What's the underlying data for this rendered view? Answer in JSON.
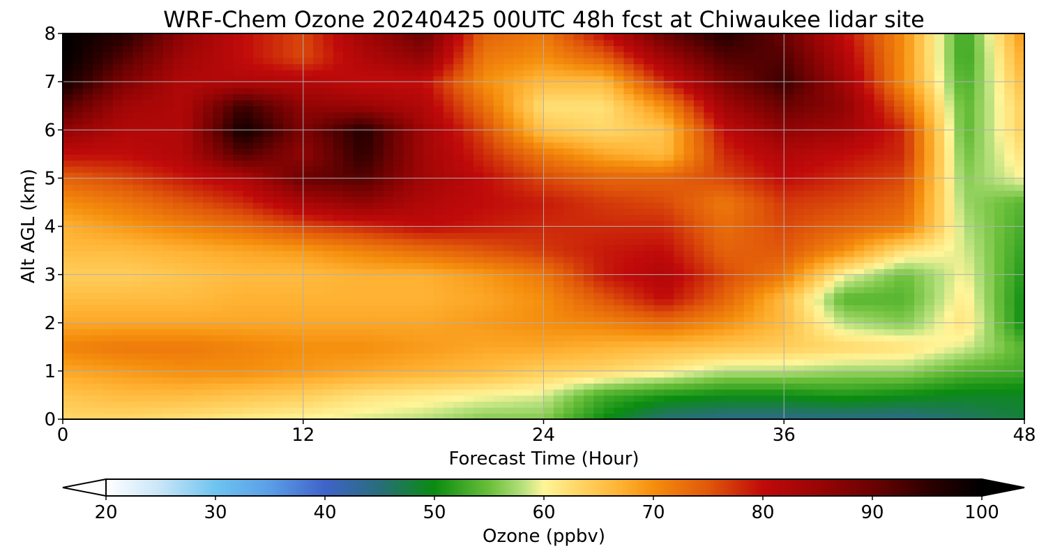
{
  "chart_data": {
    "type": "heatmap",
    "title": "WRF-Chem Ozone  20240425 00UTC 48h fcst at Chiwaukee lidar site",
    "xlabel": "Forecast Time (Hour)",
    "ylabel": "Alt AGL (km)",
    "xlim": [
      0,
      48
    ],
    "ylim": [
      0,
      8
    ],
    "x_ticks": [
      "0",
      "12",
      "24",
      "36",
      "48"
    ],
    "y_ticks": [
      "0",
      "1",
      "2",
      "3",
      "4",
      "5",
      "6",
      "7",
      "8"
    ],
    "grid": true,
    "x": [
      0,
      3,
      6,
      9,
      12,
      15,
      18,
      21,
      24,
      27,
      30,
      33,
      36,
      39,
      42,
      45,
      48
    ],
    "y": [
      0,
      0.5,
      1,
      1.5,
      2,
      2.5,
      3,
      3.5,
      4,
      4.5,
      5,
      5.5,
      6,
      6.5,
      7,
      7.5,
      8
    ],
    "z": [
      [
        63,
        63,
        62,
        61,
        60,
        59,
        58,
        56,
        56,
        50,
        45,
        44,
        44,
        44,
        44,
        46,
        48
      ],
      [
        65,
        66,
        66,
        65,
        64,
        62,
        61,
        60,
        59,
        53,
        51,
        50,
        50,
        51,
        50,
        49,
        49
      ],
      [
        68,
        69,
        70,
        70,
        69,
        68,
        67,
        66,
        64,
        63,
        61,
        58,
        58,
        57,
        57,
        54,
        53
      ],
      [
        71,
        72,
        72,
        71,
        70,
        70,
        69,
        68,
        68,
        67,
        66,
        65,
        64,
        63,
        62,
        59,
        54
      ],
      [
        68,
        68,
        68,
        68,
        68,
        68,
        68,
        69,
        70,
        71,
        73,
        70,
        66,
        58,
        56,
        62,
        50
      ],
      [
        66,
        66,
        66,
        67,
        67,
        67,
        67,
        68,
        70,
        75,
        80,
        74,
        66,
        54,
        54,
        61,
        50
      ],
      [
        64,
        64,
        65,
        66,
        66,
        67,
        67,
        69,
        72,
        79,
        82,
        76,
        72,
        60,
        55,
        60,
        51
      ],
      [
        66,
        66,
        67,
        68,
        69,
        71,
        73,
        75,
        77,
        79,
        80,
        74,
        75,
        70,
        62,
        59,
        52
      ],
      [
        67,
        69,
        71,
        73,
        76,
        78,
        80,
        79,
        78,
        78,
        78,
        73,
        76,
        74,
        72,
        58,
        53
      ],
      [
        70,
        72,
        75,
        78,
        83,
        86,
        82,
        80,
        79,
        77,
        76,
        72,
        77,
        76,
        74,
        57,
        54
      ],
      [
        74,
        76,
        79,
        82,
        90,
        92,
        84,
        80,
        76,
        74,
        74,
        76,
        80,
        78,
        76,
        56,
        60
      ],
      [
        80,
        80,
        82,
        92,
        86,
        95,
        84,
        78,
        72,
        68,
        66,
        78,
        82,
        80,
        78,
        55,
        62
      ],
      [
        86,
        82,
        82,
        98,
        88,
        96,
        84,
        76,
        65,
        63,
        65,
        80,
        86,
        84,
        78,
        54,
        64
      ],
      [
        92,
        84,
        82,
        94,
        86,
        85,
        82,
        73,
        62,
        62,
        70,
        84,
        90,
        86,
        74,
        54,
        64
      ],
      [
        98,
        88,
        82,
        82,
        82,
        80,
        80,
        70,
        66,
        66,
        78,
        88,
        94,
        84,
        70,
        53,
        66
      ],
      [
        100,
        92,
        84,
        80,
        76,
        82,
        86,
        72,
        70,
        74,
        84,
        92,
        92,
        82,
        70,
        52,
        68
      ],
      [
        100,
        96,
        86,
        80,
        76,
        84,
        90,
        74,
        72,
        80,
        90,
        96,
        90,
        80,
        70,
        52,
        70
      ]
    ],
    "colorbar": {
      "label": "Ozone  (ppbv)",
      "vmin": 20,
      "vmax": 100,
      "ticks": [
        "20",
        "30",
        "40",
        "50",
        "60",
        "70",
        "80",
        "90",
        "100"
      ],
      "extend": "both"
    }
  },
  "colormap": [
    [
      20,
      "#ffffff"
    ],
    [
      25,
      "#c7e5f8"
    ],
    [
      30,
      "#6ec4f0"
    ],
    [
      35,
      "#5a9ee6"
    ],
    [
      40,
      "#3f63c9"
    ],
    [
      45,
      "#286e7a"
    ],
    [
      50,
      "#0a8c10"
    ],
    [
      55,
      "#6abf3a"
    ],
    [
      58,
      "#b5e07c"
    ],
    [
      60,
      "#fff59a"
    ],
    [
      63,
      "#ffd768"
    ],
    [
      67,
      "#ffb233"
    ],
    [
      70,
      "#f58e0d"
    ],
    [
      75,
      "#e0580a"
    ],
    [
      80,
      "#c00a0a"
    ],
    [
      85,
      "#9a0505"
    ],
    [
      90,
      "#6b0202"
    ],
    [
      95,
      "#2e0000"
    ],
    [
      100,
      "#000000"
    ]
  ]
}
